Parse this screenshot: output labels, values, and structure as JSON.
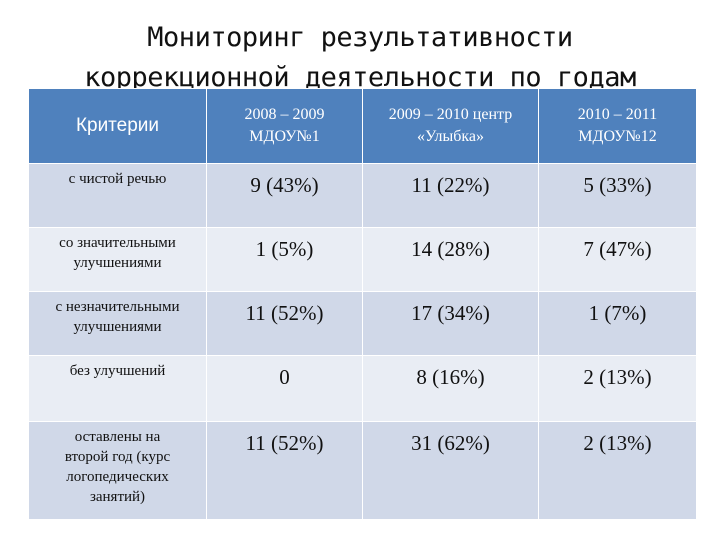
{
  "title": {
    "line1": "Мониторинг результативности",
    "line2": "коррекционной деятельности по годам"
  },
  "table": {
    "headers": [
      {
        "line1": "Критерии",
        "line2": ""
      },
      {
        "line1": "2008 – 2009",
        "line2": "МДОУ№1"
      },
      {
        "line1": "2009 – 2010 центр",
        "line2": "«Улыбка»"
      },
      {
        "line1": "2010 – 2011",
        "line2": "МДОУ№12"
      }
    ],
    "rows": [
      {
        "label": [
          "с чистой речью"
        ],
        "values": [
          "9 (43%)",
          "11 (22%)",
          "5 (33%)"
        ]
      },
      {
        "label": [
          "со значительными",
          "улучшениями"
        ],
        "values": [
          "1 (5%)",
          "14 (28%)",
          "7 (47%)"
        ]
      },
      {
        "label": [
          "с незначительными",
          "улучшениями"
        ],
        "values": [
          "11 (52%)",
          "17 (34%)",
          "1 (7%)"
        ]
      },
      {
        "label": [
          "без улучшений"
        ],
        "values": [
          "0",
          "8 (16%)",
          "2 (13%)"
        ]
      },
      {
        "label": [
          "оставлены на",
          "второй год (курс",
          "логопедических",
          "занятий)"
        ],
        "values": [
          "11 (52%)",
          "31 (62%)",
          "2 (13%)"
        ]
      }
    ]
  },
  "colors": {
    "header_bg": "#4f81bd",
    "row_odd": "#d0d8e8",
    "row_even": "#e9edf4"
  }
}
